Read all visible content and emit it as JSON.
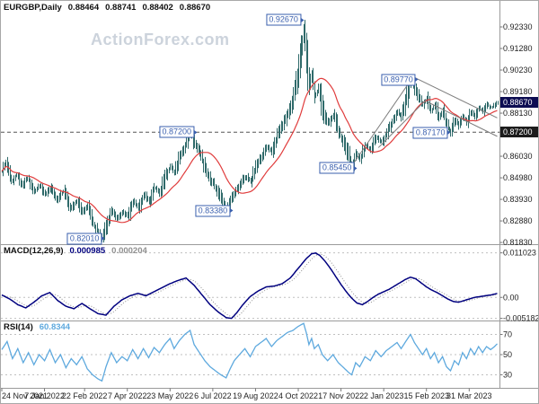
{
  "header": {
    "symbol": "EURGBP,Daily",
    "ohlc": {
      "open": "0.88464",
      "high": "0.88741",
      "low": "0.88402",
      "close": "0.88670"
    },
    "watermark": "ActionForex.com"
  },
  "colors": {
    "candle": "#2f6a6a",
    "ma": "#e03c3c",
    "macd": "#00007f",
    "signal": "#909090",
    "rsi": "#5ea9de",
    "annotation": "#3a5fae",
    "grid": "#c0c0c0",
    "axis_text": "#1f1f1f",
    "level_dash": "#555555",
    "trendline": "#7c7c7c",
    "price_box_bg": "#0d0d52",
    "level_box_bg": "#1c1c1c",
    "watermark": "#ccd3dc"
  },
  "chart_data": {
    "type": "candlestick",
    "title": "EURGBP Daily chart with MACD(12,26,9) and RSI(14) panels",
    "price_panel": {
      "y_axis_labels": [
        "0.92330",
        "0.91280",
        "0.90230",
        "0.89180",
        "0.88130",
        "0.86030",
        "0.84980",
        "0.83930",
        "0.82880",
        "0.81830"
      ],
      "current_price": "0.88670",
      "highlighted_level": "0.87200",
      "dashed_level_value": 0.872,
      "ma_period": 25,
      "close_waypoints": [
        [
          0,
          0.853
        ],
        [
          3,
          0.8575
        ],
        [
          7,
          0.848
        ],
        [
          11,
          0.8515
        ],
        [
          15,
          0.8462
        ],
        [
          19,
          0.8498
        ],
        [
          24,
          0.843
        ],
        [
          28,
          0.8462
        ],
        [
          32,
          0.842
        ],
        [
          36,
          0.8448
        ],
        [
          41,
          0.839
        ],
        [
          46,
          0.8436
        ],
        [
          51,
          0.835
        ],
        [
          56,
          0.8388
        ],
        [
          60,
          0.833
        ],
        [
          64,
          0.8365
        ],
        [
          68,
          0.827
        ],
        [
          72,
          0.823
        ],
        [
          75,
          0.8201
        ],
        [
          78,
          0.8262
        ],
        [
          82,
          0.8342
        ],
        [
          86,
          0.83
        ],
        [
          90,
          0.8332
        ],
        [
          94,
          0.831
        ],
        [
          98,
          0.8388
        ],
        [
          102,
          0.8352
        ],
        [
          106,
          0.8418
        ],
        [
          110,
          0.838
        ],
        [
          114,
          0.8452
        ],
        [
          118,
          0.8425
        ],
        [
          122,
          0.85
        ],
        [
          126,
          0.8555
        ],
        [
          129,
          0.8522
        ],
        [
          133,
          0.861
        ],
        [
          137,
          0.8655
        ],
        [
          141,
          0.8718
        ],
        [
          144,
          0.866
        ],
        [
          148,
          0.8615
        ],
        [
          152,
          0.8545
        ],
        [
          156,
          0.849
        ],
        [
          160,
          0.8445
        ],
        [
          164,
          0.8398
        ],
        [
          168,
          0.834
        ],
        [
          171,
          0.8395
        ],
        [
          174,
          0.8428
        ],
        [
          178,
          0.8462
        ],
        [
          182,
          0.8505
        ],
        [
          186,
          0.8478
        ],
        [
          190,
          0.8555
        ],
        [
          194,
          0.86
        ],
        [
          198,
          0.865
        ],
        [
          202,
          0.8625
        ],
        [
          206,
          0.87
        ],
        [
          210,
          0.8758
        ],
        [
          214,
          0.882
        ],
        [
          218,
          0.8905
        ],
        [
          221,
          0.899
        ],
        [
          224,
          0.912
        ],
        [
          226,
          0.9235
        ],
        [
          228,
          0.908
        ],
        [
          230,
          0.8935
        ],
        [
          232,
          0.901
        ],
        [
          234,
          0.889
        ],
        [
          237,
          0.894
        ],
        [
          240,
          0.8825
        ],
        [
          244,
          0.8762
        ],
        [
          248,
          0.8808
        ],
        [
          252,
          0.8718
        ],
        [
          256,
          0.8662
        ],
        [
          260,
          0.859
        ],
        [
          262,
          0.8545
        ],
        [
          265,
          0.8618
        ],
        [
          268,
          0.859
        ],
        [
          272,
          0.8655
        ],
        [
          276,
          0.8632
        ],
        [
          280,
          0.87
        ],
        [
          284,
          0.8672
        ],
        [
          288,
          0.8718
        ],
        [
          292,
          0.8772
        ],
        [
          296,
          0.8822
        ],
        [
          299,
          0.879
        ],
        [
          302,
          0.887
        ],
        [
          304,
          0.892
        ],
        [
          306,
          0.8977
        ],
        [
          309,
          0.893
        ],
        [
          312,
          0.889
        ],
        [
          315,
          0.8852
        ],
        [
          318,
          0.8888
        ],
        [
          321,
          0.8822
        ],
        [
          324,
          0.8855
        ],
        [
          327,
          0.8792
        ],
        [
          330,
          0.8822
        ],
        [
          333,
          0.8752
        ],
        [
          336,
          0.8717
        ],
        [
          339,
          0.8782
        ],
        [
          342,
          0.8748
        ],
        [
          345,
          0.88
        ],
        [
          348,
          0.8768
        ],
        [
          351,
          0.8822
        ],
        [
          354,
          0.8795
        ],
        [
          357,
          0.8842
        ],
        [
          360,
          0.882
        ],
        [
          363,
          0.8855
        ],
        [
          366,
          0.884
        ],
        [
          369,
          0.885
        ],
        [
          371,
          0.8867
        ]
      ],
      "annotations": [
        {
          "text": "0.92670",
          "day": 226,
          "price": 0.9267
        },
        {
          "text": "0.89770",
          "day": 312,
          "price": 0.8977
        },
        {
          "text": "0.87200",
          "day": 146,
          "price": 0.872
        },
        {
          "text": "0.87170",
          "day": 336,
          "price": 0.8717
        },
        {
          "text": "0.85450",
          "day": 266,
          "price": 0.8545
        },
        {
          "text": "0.83380",
          "day": 173,
          "price": 0.8338
        },
        {
          "text": "0.82010",
          "day": 77,
          "price": 0.8201
        }
      ],
      "trendlines": [
        {
          "d1": 262,
          "p1": 0.8555,
          "d2": 308,
          "p2": 0.899
        },
        {
          "d1": 282,
          "p1": 0.8645,
          "d2": 318,
          "p2": 0.888
        },
        {
          "d1": 308,
          "p1": 0.899,
          "d2": 371,
          "p2": 0.879
        },
        {
          "d1": 318,
          "p1": 0.887,
          "d2": 371,
          "p2": 0.87
        }
      ]
    },
    "macd_panel": {
      "title": "MACD(12,26,9)",
      "value_macd": "0.000985",
      "value_signal": "0.000204",
      "axis_labels": [
        {
          "text": "0.011023",
          "value": 0.011023
        },
        {
          "text": "0.00",
          "value": 0
        },
        {
          "text": "-0.005182",
          "value": -0.005182
        }
      ],
      "range": [
        -0.0055,
        0.0125
      ],
      "signal_period": 9,
      "waypoints": [
        [
          0,
          0.0006
        ],
        [
          6,
          -0.0004
        ],
        [
          12,
          -0.0018
        ],
        [
          18,
          -0.0026
        ],
        [
          24,
          -0.0012
        ],
        [
          30,
          0.0004
        ],
        [
          36,
          0.0012
        ],
        [
          42,
          -0.0008
        ],
        [
          48,
          -0.0022
        ],
        [
          54,
          -0.0028
        ],
        [
          60,
          -0.0015
        ],
        [
          66,
          -0.0028
        ],
        [
          72,
          -0.004
        ],
        [
          78,
          -0.0044
        ],
        [
          84,
          -0.0022
        ],
        [
          90,
          -0.0006
        ],
        [
          96,
          0.0004
        ],
        [
          102,
          0.001
        ],
        [
          108,
          0.0004
        ],
        [
          114,
          0.0014
        ],
        [
          120,
          0.0024
        ],
        [
          126,
          0.0034
        ],
        [
          132,
          0.0042
        ],
        [
          138,
          0.0048
        ],
        [
          144,
          0.003
        ],
        [
          150,
          0.0006
        ],
        [
          156,
          -0.0018
        ],
        [
          162,
          -0.0036
        ],
        [
          168,
          -0.005
        ],
        [
          172,
          -0.0052
        ],
        [
          176,
          -0.0038
        ],
        [
          180,
          -0.002
        ],
        [
          186,
          0.0002
        ],
        [
          192,
          0.0016
        ],
        [
          198,
          0.0026
        ],
        [
          204,
          0.0028
        ],
        [
          210,
          0.0034
        ],
        [
          216,
          0.0048
        ],
        [
          222,
          0.0072
        ],
        [
          228,
          0.0096
        ],
        [
          232,
          0.0108
        ],
        [
          235,
          0.011
        ],
        [
          238,
          0.0104
        ],
        [
          242,
          0.009
        ],
        [
          246,
          0.0072
        ],
        [
          250,
          0.0052
        ],
        [
          254,
          0.0032
        ],
        [
          258,
          0.0014
        ],
        [
          262,
          -0.0002
        ],
        [
          266,
          -0.0014
        ],
        [
          270,
          -0.0018
        ],
        [
          274,
          -0.001
        ],
        [
          278,
          0.0
        ],
        [
          282,
          0.0008
        ],
        [
          286,
          0.0014
        ],
        [
          290,
          0.002
        ],
        [
          294,
          0.0028
        ],
        [
          298,
          0.0036
        ],
        [
          302,
          0.0044
        ],
        [
          306,
          0.005
        ],
        [
          310,
          0.0046
        ],
        [
          314,
          0.0036
        ],
        [
          318,
          0.0026
        ],
        [
          322,
          0.0018
        ],
        [
          326,
          0.0012
        ],
        [
          330,
          0.0004
        ],
        [
          334,
          -0.0004
        ],
        [
          338,
          -0.001
        ],
        [
          342,
          -0.0012
        ],
        [
          346,
          -0.0008
        ],
        [
          350,
          -0.0004
        ],
        [
          354,
          0.0
        ],
        [
          358,
          0.0002
        ],
        [
          362,
          0.0004
        ],
        [
          366,
          0.0006
        ],
        [
          369,
          0.0008
        ],
        [
          371,
          0.000985
        ]
      ]
    },
    "rsi_panel": {
      "title": "RSI(14)",
      "value": "60.8344",
      "axis_labels": [
        {
          "text": "70",
          "value": 70
        },
        {
          "text": "50",
          "value": 50
        },
        {
          "text": "30",
          "value": 30
        }
      ],
      "range": [
        18,
        82
      ],
      "waypoints": [
        [
          0,
          55
        ],
        [
          4,
          63
        ],
        [
          8,
          46
        ],
        [
          12,
          56
        ],
        [
          16,
          42
        ],
        [
          20,
          52
        ],
        [
          24,
          40
        ],
        [
          28,
          50
        ],
        [
          32,
          44
        ],
        [
          36,
          55
        ],
        [
          40,
          42
        ],
        [
          44,
          50
        ],
        [
          48,
          37
        ],
        [
          52,
          46
        ],
        [
          56,
          40
        ],
        [
          60,
          48
        ],
        [
          64,
          36
        ],
        [
          68,
          30
        ],
        [
          72,
          26
        ],
        [
          75,
          24
        ],
        [
          78,
          38
        ],
        [
          82,
          52
        ],
        [
          86,
          42
        ],
        [
          90,
          48
        ],
        [
          94,
          44
        ],
        [
          98,
          55
        ],
        [
          102,
          46
        ],
        [
          106,
          56
        ],
        [
          110,
          47
        ],
        [
          114,
          57
        ],
        [
          118,
          52
        ],
        [
          122,
          60
        ],
        [
          126,
          66
        ],
        [
          129,
          56
        ],
        [
          133,
          64
        ],
        [
          137,
          70
        ],
        [
          141,
          74
        ],
        [
          144,
          60
        ],
        [
          148,
          52
        ],
        [
          152,
          44
        ],
        [
          156,
          38
        ],
        [
          160,
          34
        ],
        [
          164,
          30
        ],
        [
          168,
          27
        ],
        [
          171,
          36
        ],
        [
          174,
          44
        ],
        [
          178,
          50
        ],
        [
          182,
          56
        ],
        [
          186,
          48
        ],
        [
          190,
          58
        ],
        [
          194,
          62
        ],
        [
          198,
          66
        ],
        [
          202,
          58
        ],
        [
          206,
          64
        ],
        [
          210,
          68
        ],
        [
          214,
          72
        ],
        [
          218,
          74
        ],
        [
          222,
          78
        ],
        [
          226,
          81
        ],
        [
          228,
          72
        ],
        [
          230,
          60
        ],
        [
          232,
          66
        ],
        [
          234,
          56
        ],
        [
          237,
          60
        ],
        [
          240,
          50
        ],
        [
          244,
          44
        ],
        [
          248,
          50
        ],
        [
          252,
          42
        ],
        [
          256,
          37
        ],
        [
          260,
          32
        ],
        [
          262,
          30
        ],
        [
          265,
          42
        ],
        [
          268,
          38
        ],
        [
          272,
          48
        ],
        [
          276,
          44
        ],
        [
          280,
          54
        ],
        [
          284,
          48
        ],
        [
          288,
          54
        ],
        [
          292,
          58
        ],
        [
          296,
          62
        ],
        [
          299,
          56
        ],
        [
          302,
          62
        ],
        [
          304,
          66
        ],
        [
          306,
          70
        ],
        [
          309,
          62
        ],
        [
          312,
          56
        ],
        [
          315,
          50
        ],
        [
          318,
          56
        ],
        [
          321,
          46
        ],
        [
          324,
          52
        ],
        [
          327,
          42
        ],
        [
          330,
          48
        ],
        [
          333,
          38
        ],
        [
          336,
          34
        ],
        [
          339,
          44
        ],
        [
          342,
          40
        ],
        [
          345,
          52
        ],
        [
          348,
          46
        ],
        [
          351,
          56
        ],
        [
          354,
          50
        ],
        [
          357,
          58
        ],
        [
          360,
          52
        ],
        [
          363,
          58
        ],
        [
          366,
          55
        ],
        [
          369,
          58
        ],
        [
          371,
          60.8
        ]
      ]
    },
    "x_axis": {
      "total_days": 372,
      "labels": [
        {
          "text": "24 Nov 2021",
          "day": 0
        },
        {
          "text": "7 Jan 2022",
          "day": 32
        },
        {
          "text": "22 Feb 2022",
          "day": 62
        },
        {
          "text": "7 Apr 2022",
          "day": 94
        },
        {
          "text": "23 May 2022",
          "day": 126
        },
        {
          "text": "6 Jul 2022",
          "day": 158
        },
        {
          "text": "19 Aug 2022",
          "day": 190
        },
        {
          "text": "4 Oct 2022",
          "day": 222
        },
        {
          "text": "17 Nov 2022",
          "day": 254
        },
        {
          "text": "2 Jan 2023",
          "day": 286
        },
        {
          "text": "15 Feb 2023",
          "day": 318
        },
        {
          "text": "31 Mar 2023",
          "day": 350
        }
      ]
    }
  }
}
